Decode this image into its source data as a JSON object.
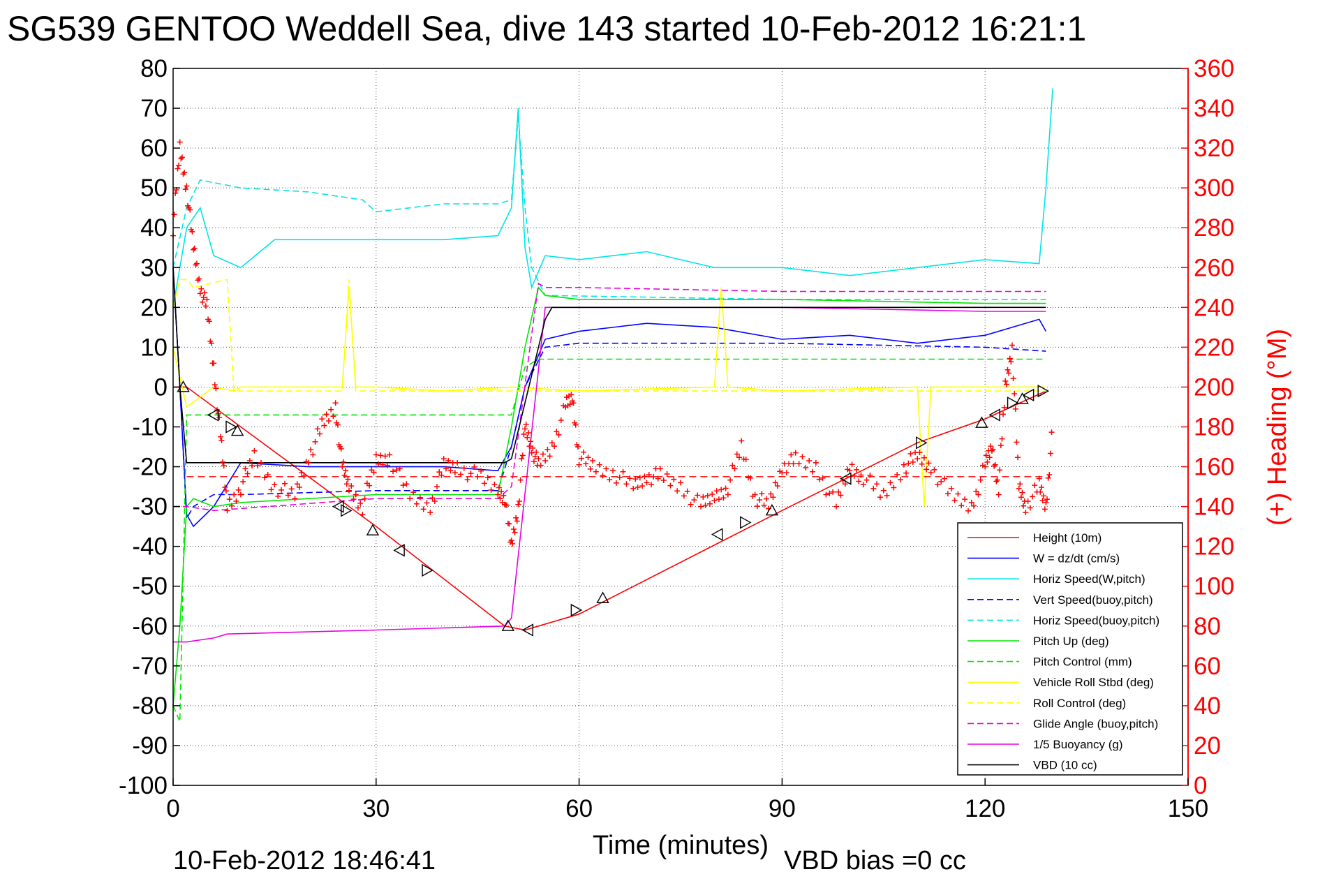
{
  "chart_data": {
    "type": "line",
    "title": "SG539 GENTOO Weddell Sea, dive 143 started 10-Feb-2012 16:21:1",
    "xlabel": "Time (minutes)",
    "ylabel_right": "(+) Heading (°M)",
    "footer_left": "10-Feb-2012 18:46:41",
    "footer_right": "VBD bias =0 cc",
    "xlim": [
      0,
      150
    ],
    "ylim_left": [
      -100,
      80
    ],
    "ylim_right": [
      0,
      360
    ],
    "xticks": [
      "0",
      "30",
      "60",
      "90",
      "120",
      "150"
    ],
    "yticks_left": [
      "80",
      "70",
      "60",
      "50",
      "40",
      "30",
      "20",
      "10",
      "0",
      "-10",
      "-20",
      "-30",
      "-40",
      "-50",
      "-60",
      "-70",
      "-80",
      "-90",
      "-100"
    ],
    "yticks_right": [
      "360",
      "340",
      "320",
      "300",
      "280",
      "260",
      "240",
      "220",
      "200",
      "180",
      "160",
      "140",
      "120",
      "100",
      "80",
      "60",
      "40",
      "20",
      "0"
    ],
    "grid": true,
    "legend_position": "lower-right",
    "heading_color": "#ff0000",
    "series": [
      {
        "name": "Height (10m)",
        "color": "#ff0000",
        "style": "solid",
        "x": [
          0,
          2,
          30,
          49,
          52,
          54,
          60,
          90,
          110,
          120,
          129
        ],
        "y": [
          0,
          0,
          -35,
          -60,
          -61,
          -60,
          -57,
          -31,
          -14,
          -8,
          -1
        ]
      },
      {
        "name": "W = dz/dt (cm/s)",
        "color": "#0000ff",
        "style": "solid",
        "x": [
          0,
          1,
          2,
          3,
          6,
          10,
          20,
          30,
          40,
          48,
          50,
          52,
          55,
          60,
          70,
          80,
          90,
          100,
          110,
          120,
          128,
          129
        ],
        "y": [
          30,
          0,
          -32,
          -35,
          -30,
          -19,
          -20,
          -20,
          -20,
          -21,
          -15,
          0,
          12,
          14,
          16,
          15,
          12,
          13,
          11,
          13,
          17,
          14
        ]
      },
      {
        "name": "Horiz Speed(W,pitch)",
        "color": "#00e5e5",
        "style": "solid",
        "x": [
          0,
          2,
          4,
          6,
          10,
          15,
          20,
          30,
          40,
          48,
          50,
          51,
          52,
          53,
          55,
          60,
          70,
          80,
          90,
          100,
          110,
          120,
          128,
          129,
          130
        ],
        "y": [
          20,
          40,
          45,
          33,
          30,
          37,
          37,
          37,
          37,
          38,
          45,
          70,
          35,
          25,
          33,
          32,
          34,
          30,
          30,
          28,
          30,
          32,
          31,
          50,
          75
        ]
      },
      {
        "name": "Vert Speed(buoy,pitch)",
        "color": "#0000ff",
        "style": "dashed",
        "x": [
          0,
          1,
          2,
          3,
          6,
          10,
          30,
          48,
          50,
          52,
          55,
          60,
          90,
          120,
          129
        ],
        "y": [
          30,
          0,
          -33,
          -30,
          -27,
          -27,
          -26,
          -26,
          -15,
          0,
          10,
          11,
          11,
          10,
          9
        ]
      },
      {
        "name": "Horiz Speed(buoy,pitch)",
        "color": "#00e5e5",
        "style": "dashed",
        "x": [
          0,
          2,
          4,
          10,
          20,
          28,
          30,
          40,
          48,
          50,
          51,
          52,
          53,
          55,
          90,
          120,
          129
        ],
        "y": [
          30,
          45,
          52,
          50,
          49,
          47,
          44,
          46,
          46,
          47,
          68,
          45,
          30,
          23,
          22,
          22,
          22
        ]
      },
      {
        "name": "Pitch Up (deg)",
        "color": "#00e600",
        "style": "solid",
        "x": [
          0,
          1,
          2,
          3,
          6,
          10,
          30,
          48,
          50,
          52,
          54,
          55,
          60,
          90,
          120,
          129
        ],
        "y": [
          -80,
          -60,
          -30,
          -28,
          -30,
          -29,
          -27,
          -27,
          -10,
          10,
          25,
          23,
          22,
          22,
          21,
          21
        ]
      },
      {
        "name": "Pitch Control (mm)",
        "color": "#00e600",
        "style": "dashed",
        "x": [
          0,
          1,
          2,
          48,
          50,
          52,
          54,
          129
        ],
        "y": [
          -80,
          -84,
          -7,
          -7,
          -7,
          5,
          7,
          7
        ]
      },
      {
        "name": "Vehicle Roll Stbd (deg)",
        "color": "#ffff00",
        "style": "solid",
        "x": [
          0,
          2,
          6,
          9,
          10,
          25,
          26,
          27,
          28,
          30,
          40,
          50,
          60,
          80,
          81,
          82,
          90,
          110,
          111,
          112,
          120,
          129
        ],
        "y": [
          10,
          -5,
          0,
          -1,
          0,
          0,
          25,
          0,
          0,
          0,
          -1,
          0,
          -1,
          0,
          25,
          0,
          -1,
          0,
          -30,
          0,
          0,
          0
        ]
      },
      {
        "name": "Roll Control (deg)",
        "color": "#ffff00",
        "style": "dashed",
        "x": [
          0,
          1,
          2,
          3,
          8,
          9,
          10,
          25,
          26,
          27,
          30,
          50,
          60,
          90,
          120,
          129
        ],
        "y": [
          20,
          27,
          27,
          25,
          27,
          -1,
          -1,
          -1,
          27,
          -1,
          -1,
          -1,
          -1,
          -1,
          -1,
          -1
        ]
      },
      {
        "name": "Glide Angle (buoy,pitch)",
        "color": "#e600e6",
        "style": "dashed",
        "x": [
          0,
          2,
          6,
          30,
          48,
          50,
          54,
          55,
          60,
          90,
          120,
          129
        ],
        "y": [
          -30,
          -30,
          -31,
          -28,
          -28,
          -25,
          26,
          25,
          25,
          24,
          24,
          24
        ]
      },
      {
        "name": "1/5 Buoyancy (g)",
        "color": "#e600e6",
        "style": "solid",
        "x": [
          0,
          2,
          6,
          8,
          30,
          49,
          50,
          55,
          60,
          90,
          120,
          129
        ],
        "y": [
          -64,
          -64,
          -63,
          -62,
          -61,
          -60,
          -58,
          20,
          20,
          20,
          19,
          19
        ]
      },
      {
        "name": "VBD (10 cc)",
        "color": "#000000",
        "style": "solid",
        "x": [
          0,
          1,
          2,
          49,
          50,
          55,
          56,
          129
        ],
        "y": [
          30,
          0,
          -19,
          -19,
          -18,
          17,
          20,
          20
        ]
      }
    ],
    "heading_series": {
      "color": "#ff0000",
      "axis": "right",
      "mean": 155,
      "x": [
        0,
        1,
        2,
        3,
        4,
        5,
        6,
        7,
        8,
        10,
        12,
        15,
        18,
        20,
        22,
        24,
        25,
        26,
        28,
        30,
        32,
        35,
        38,
        40,
        42,
        45,
        48,
        49,
        50,
        51,
        52,
        53,
        54,
        56,
        58,
        59,
        60,
        62,
        65,
        68,
        70,
        72,
        75,
        78,
        80,
        82,
        84,
        86,
        88,
        90,
        92,
        95,
        98,
        100,
        102,
        105,
        108,
        110,
        112,
        115,
        118,
        120,
        121,
        122,
        123,
        124,
        125,
        126,
        128,
        129,
        130
      ],
      "y": [
        280,
        320,
        300,
        270,
        250,
        240,
        210,
        175,
        140,
        150,
        165,
        150,
        145,
        165,
        180,
        190,
        160,
        150,
        140,
        163,
        165,
        145,
        140,
        160,
        160,
        155,
        148,
        145,
        120,
        140,
        180,
        170,
        160,
        170,
        190,
        195,
        165,
        160,
        157,
        150,
        155,
        155,
        150,
        140,
        145,
        150,
        170,
        145,
        140,
        160,
        163,
        160,
        140,
        160,
        155,
        145,
        160,
        165,
        160,
        145,
        140,
        160,
        170,
        150,
        200,
        220,
        150,
        140,
        150,
        140,
        180
      ]
    },
    "marker_style": "triangles (◁ ▷ △) on depth trace",
    "markers": [
      {
        "x": 1.5,
        "y": 0
      },
      {
        "x": 6,
        "y": -7
      },
      {
        "x": 8.5,
        "y": -10
      },
      {
        "x": 9.5,
        "y": -11
      },
      {
        "x": 24.5,
        "y": -30
      },
      {
        "x": 25.5,
        "y": -31
      },
      {
        "x": 29.5,
        "y": -36
      },
      {
        "x": 33.5,
        "y": -41
      },
      {
        "x": 37.5,
        "y": -46
      },
      {
        "x": 49.5,
        "y": -60
      },
      {
        "x": 52.5,
        "y": -61
      },
      {
        "x": 59.5,
        "y": -56
      },
      {
        "x": 63.5,
        "y": -53
      },
      {
        "x": 80.5,
        "y": -37
      },
      {
        "x": 84.5,
        "y": -34
      },
      {
        "x": 88.5,
        "y": -31
      },
      {
        "x": 99.5,
        "y": -23
      },
      {
        "x": 110.5,
        "y": -14
      },
      {
        "x": 119.5,
        "y": -9
      },
      {
        "x": 121.5,
        "y": -7
      },
      {
        "x": 124,
        "y": -4
      },
      {
        "x": 125.5,
        "y": -3
      },
      {
        "x": 126.5,
        "y": -2
      },
      {
        "x": 128.5,
        "y": -1
      }
    ]
  }
}
